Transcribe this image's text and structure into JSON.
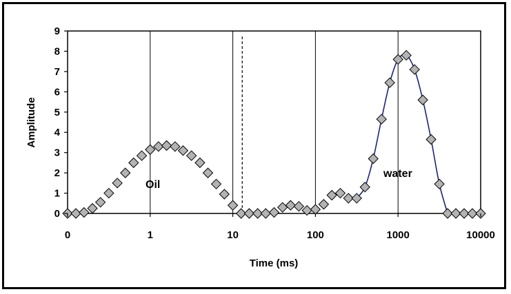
{
  "chart_data": {
    "type": "scatter",
    "xlabel": "Time (ms)",
    "ylabel": "Amplitude",
    "xscale": "log",
    "xlim": [
      0.1,
      10000
    ],
    "ylim": [
      0,
      9
    ],
    "x_tick_labels": [
      "0",
      "1",
      "10",
      "100",
      "1000",
      "10000"
    ],
    "y_tick_labels": [
      "0",
      "1",
      "2",
      "3",
      "4",
      "5",
      "6",
      "7",
      "8",
      "9"
    ],
    "grid": "vertical at decades",
    "divider_x": 13,
    "annotations": [
      "Oil",
      "water"
    ],
    "marker_color": "#b3b3b3",
    "line_color": "#1a237e",
    "series": [
      {
        "marker": "diamond",
        "x": [
          0.1,
          0.126,
          0.158,
          0.2,
          0.25,
          0.316,
          0.4,
          0.5,
          0.63,
          0.79,
          1.0,
          1.26,
          1.58,
          2.0,
          2.5,
          3.16,
          4.0,
          5.0,
          6.3,
          7.9,
          10,
          12.6,
          15.8,
          20,
          25,
          31.6,
          40,
          50,
          63,
          79,
          100,
          126,
          158,
          200,
          251,
          316,
          398,
          501,
          631,
          794,
          1000,
          1259,
          1585,
          1995,
          2512,
          3162,
          3981,
          5012,
          6310,
          7943,
          10000
        ],
        "y": [
          0,
          0,
          0.05,
          0.25,
          0.55,
          1.0,
          1.5,
          2.0,
          2.5,
          2.85,
          3.15,
          3.3,
          3.35,
          3.3,
          3.1,
          2.85,
          2.5,
          2.0,
          1.45,
          0.95,
          0.4,
          0,
          0,
          0,
          0,
          0.05,
          0.3,
          0.4,
          0.35,
          0.15,
          0.2,
          0.45,
          0.9,
          1.0,
          0.75,
          0.75,
          1.3,
          2.7,
          4.65,
          6.45,
          7.6,
          7.8,
          7.1,
          5.6,
          3.65,
          1.45,
          0,
          0,
          0,
          0,
          0
        ]
      }
    ],
    "line_segment": {
      "x": [
        316,
        398,
        501,
        631,
        794,
        1000,
        1259,
        1585,
        1995,
        2512,
        3162,
        3981
      ],
      "y": [
        0.75,
        1.3,
        2.7,
        4.65,
        6.45,
        7.6,
        7.8,
        7.1,
        5.6,
        3.65,
        1.45,
        0
      ]
    }
  }
}
